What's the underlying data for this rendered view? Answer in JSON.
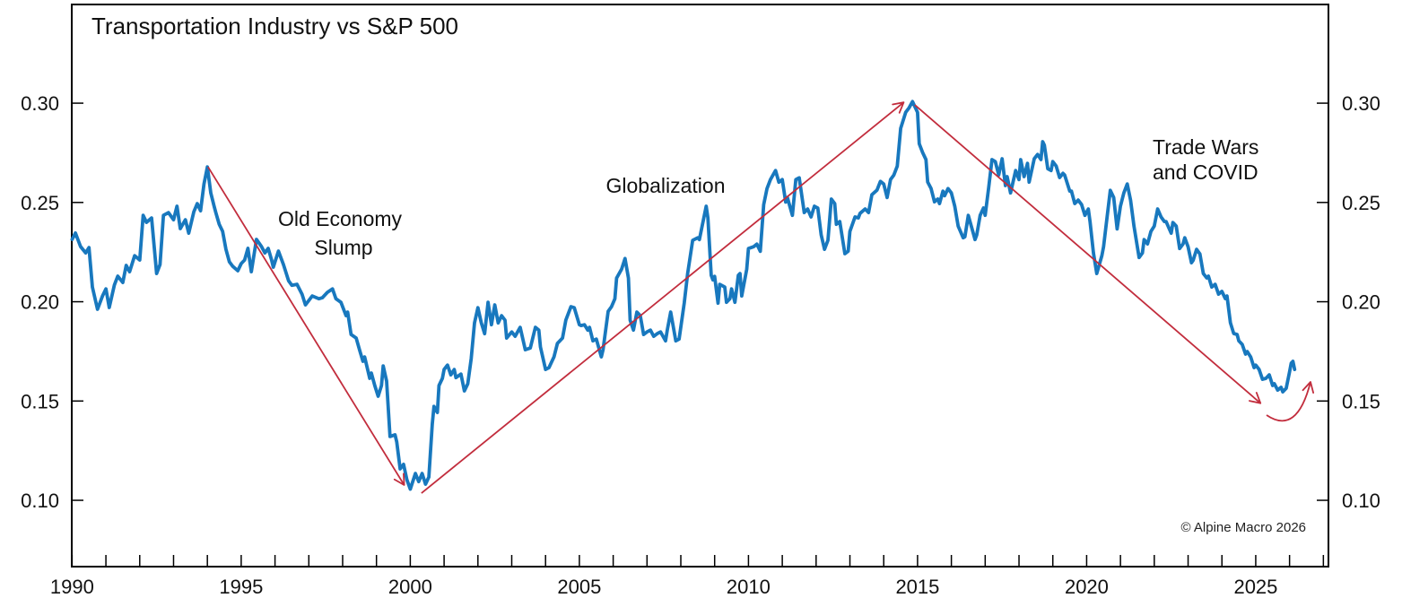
{
  "title": "Transportation Industry vs S&P 500",
  "copyright_note": "© Alpine Macro 2026",
  "colors": {
    "line": "#1878be",
    "arrow": "#c22d3d",
    "axis": "#000000",
    "text": "#111111",
    "background": "#ffffff"
  },
  "annotations": [
    {
      "id": "old-economy-slump",
      "lines": [
        "Old Economy",
        "Slump"
      ]
    },
    {
      "id": "globalization",
      "lines": [
        "Globalization"
      ]
    },
    {
      "id": "trade-wars-covid",
      "lines": [
        "Trade Wars",
        "and COVID"
      ]
    }
  ],
  "chart_data": {
    "type": "line",
    "title": "Transportation Industry vs S&P 500",
    "xlabel": "",
    "ylabel": "",
    "grid": false,
    "legend": "none",
    "xlim": [
      1989.99,
      2027.15
    ],
    "ylim": [
      0.0666,
      0.3497
    ],
    "x_minor_step": 1,
    "x_ticks": [
      {
        "value": 1990,
        "label": "1990"
      },
      {
        "value": 1995,
        "label": "1995"
      },
      {
        "value": 2000,
        "label": "2000"
      },
      {
        "value": 2005,
        "label": "2005"
      },
      {
        "value": 2010,
        "label": "2010"
      },
      {
        "value": 2015,
        "label": "2015"
      },
      {
        "value": 2020,
        "label": "2020"
      },
      {
        "value": 2025,
        "label": "2025"
      }
    ],
    "y_ticks": [
      {
        "value": 0.1,
        "label": "0.10"
      },
      {
        "value": 0.15,
        "label": "0.15"
      },
      {
        "value": 0.2,
        "label": "0.20"
      },
      {
        "value": 0.25,
        "label": "0.25"
      },
      {
        "value": 0.3,
        "label": "0.30"
      }
    ],
    "points": [
      [
        1990.0,
        0.2314
      ],
      [
        1990.1,
        0.2346
      ],
      [
        1990.25,
        0.2278
      ],
      [
        1990.4,
        0.2246
      ],
      [
        1990.5,
        0.2273
      ],
      [
        1990.6,
        0.2074
      ],
      [
        1990.75,
        0.1962
      ],
      [
        1990.9,
        0.2029
      ],
      [
        1991.0,
        0.2065
      ],
      [
        1991.1,
        0.1971
      ],
      [
        1991.25,
        0.2084
      ],
      [
        1991.35,
        0.2129
      ],
      [
        1991.5,
        0.2097
      ],
      [
        1991.6,
        0.2183
      ],
      [
        1991.7,
        0.2151
      ],
      [
        1991.85,
        0.2232
      ],
      [
        1992.0,
        0.221
      ],
      [
        1992.1,
        0.2435
      ],
      [
        1992.2,
        0.24
      ],
      [
        1992.35,
        0.2422
      ],
      [
        1992.5,
        0.2142
      ],
      [
        1992.6,
        0.2187
      ],
      [
        1992.7,
        0.2435
      ],
      [
        1992.85,
        0.2449
      ],
      [
        1993.0,
        0.2413
      ],
      [
        1993.1,
        0.2481
      ],
      [
        1993.2,
        0.2368
      ],
      [
        1993.35,
        0.2413
      ],
      [
        1993.45,
        0.2345
      ],
      [
        1993.6,
        0.2453
      ],
      [
        1993.7,
        0.2494
      ],
      [
        1993.8,
        0.2458
      ],
      [
        1993.9,
        0.2593
      ],
      [
        1994.0,
        0.2679
      ],
      [
        1994.1,
        0.2548
      ],
      [
        1994.2,
        0.2481
      ],
      [
        1994.25,
        0.2449
      ],
      [
        1994.35,
        0.239
      ],
      [
        1994.45,
        0.2354
      ],
      [
        1994.55,
        0.2264
      ],
      [
        1994.65,
        0.2201
      ],
      [
        1994.75,
        0.2178
      ],
      [
        1994.9,
        0.2156
      ],
      [
        1995.0,
        0.2192
      ],
      [
        1995.1,
        0.221
      ],
      [
        1995.2,
        0.2269
      ],
      [
        1995.3,
        0.2151
      ],
      [
        1995.45,
        0.2314
      ],
      [
        1995.6,
        0.2278
      ],
      [
        1995.7,
        0.2246
      ],
      [
        1995.8,
        0.2269
      ],
      [
        1995.9,
        0.221
      ],
      [
        1995.95,
        0.2174
      ],
      [
        1996.1,
        0.2255
      ],
      [
        1996.25,
        0.2187
      ],
      [
        1996.4,
        0.2106
      ],
      [
        1996.5,
        0.2083
      ],
      [
        1996.65,
        0.2088
      ],
      [
        1996.8,
        0.2038
      ],
      [
        1996.9,
        0.1984
      ],
      [
        1997.1,
        0.2029
      ],
      [
        1997.3,
        0.2015
      ],
      [
        1997.4,
        0.202
      ],
      [
        1997.55,
        0.2047
      ],
      [
        1997.7,
        0.2065
      ],
      [
        1997.8,
        0.2015
      ],
      [
        1997.95,
        0.1997
      ],
      [
        1998.1,
        0.193
      ],
      [
        1998.15,
        0.1948
      ],
      [
        1998.25,
        0.1835
      ],
      [
        1998.4,
        0.1817
      ],
      [
        1998.5,
        0.1758
      ],
      [
        1998.6,
        0.17
      ],
      [
        1998.65,
        0.1722
      ],
      [
        1998.8,
        0.1614
      ],
      [
        1998.85,
        0.1641
      ],
      [
        1998.95,
        0.1578
      ],
      [
        1999.05,
        0.1524
      ],
      [
        1999.15,
        0.1578
      ],
      [
        1999.2,
        0.1677
      ],
      [
        1999.3,
        0.16
      ],
      [
        1999.4,
        0.1321
      ],
      [
        1999.55,
        0.133
      ],
      [
        1999.6,
        0.1294
      ],
      [
        1999.7,
        0.1158
      ],
      [
        1999.8,
        0.1181
      ],
      [
        1999.9,
        0.1104
      ],
      [
        2000.0,
        0.1056
      ],
      [
        2000.15,
        0.1135
      ],
      [
        2000.25,
        0.1094
      ],
      [
        2000.35,
        0.1135
      ],
      [
        2000.45,
        0.1081
      ],
      [
        2000.55,
        0.1117
      ],
      [
        2000.65,
        0.1383
      ],
      [
        2000.7,
        0.1473
      ],
      [
        2000.8,
        0.1442
      ],
      [
        2000.85,
        0.1578
      ],
      [
        2000.95,
        0.1614
      ],
      [
        2001.0,
        0.1659
      ],
      [
        2001.1,
        0.1681
      ],
      [
        2001.2,
        0.1632
      ],
      [
        2001.3,
        0.1659
      ],
      [
        2001.35,
        0.1618
      ],
      [
        2001.5,
        0.1636
      ],
      [
        2001.6,
        0.1551
      ],
      [
        2001.7,
        0.1587
      ],
      [
        2001.8,
        0.1713
      ],
      [
        2001.9,
        0.1893
      ],
      [
        2002.0,
        0.197
      ],
      [
        2002.1,
        0.1893
      ],
      [
        2002.2,
        0.1839
      ],
      [
        2002.3,
        0.1997
      ],
      [
        2002.4,
        0.1884
      ],
      [
        2002.5,
        0.1984
      ],
      [
        2002.6,
        0.1893
      ],
      [
        2002.7,
        0.193
      ],
      [
        2002.8,
        0.1907
      ],
      [
        2002.85,
        0.1817
      ],
      [
        2003.0,
        0.1848
      ],
      [
        2003.1,
        0.1826
      ],
      [
        2003.25,
        0.1871
      ],
      [
        2003.4,
        0.1758
      ],
      [
        2003.55,
        0.1767
      ],
      [
        2003.7,
        0.1871
      ],
      [
        2003.8,
        0.1857
      ],
      [
        2003.85,
        0.1772
      ],
      [
        2004.0,
        0.1659
      ],
      [
        2004.1,
        0.1668
      ],
      [
        2004.25,
        0.1722
      ],
      [
        2004.35,
        0.179
      ],
      [
        2004.5,
        0.1817
      ],
      [
        2004.6,
        0.1907
      ],
      [
        2004.75,
        0.1975
      ],
      [
        2004.85,
        0.197
      ],
      [
        2005.0,
        0.1884
      ],
      [
        2005.05,
        0.188
      ],
      [
        2005.15,
        0.1884
      ],
      [
        2005.25,
        0.1857
      ],
      [
        2005.3,
        0.1871
      ],
      [
        2005.4,
        0.1803
      ],
      [
        2005.5,
        0.1812
      ],
      [
        2005.65,
        0.1722
      ],
      [
        2005.7,
        0.1758
      ],
      [
        2005.85,
        0.1952
      ],
      [
        2005.95,
        0.1975
      ],
      [
        2006.05,
        0.2015
      ],
      [
        2006.1,
        0.2119
      ],
      [
        2006.25,
        0.2164
      ],
      [
        2006.35,
        0.2218
      ],
      [
        2006.45,
        0.2119
      ],
      [
        2006.5,
        0.1907
      ],
      [
        2006.6,
        0.1857
      ],
      [
        2006.7,
        0.1948
      ],
      [
        2006.8,
        0.193
      ],
      [
        2006.9,
        0.1835
      ],
      [
        2007.0,
        0.1848
      ],
      [
        2007.1,
        0.1857
      ],
      [
        2007.2,
        0.1826
      ],
      [
        2007.3,
        0.1839
      ],
      [
        2007.4,
        0.1848
      ],
      [
        2007.55,
        0.1803
      ],
      [
        2007.6,
        0.1857
      ],
      [
        2007.7,
        0.1948
      ],
      [
        2007.85,
        0.1803
      ],
      [
        2007.95,
        0.1812
      ],
      [
        2008.1,
        0.1993
      ],
      [
        2008.2,
        0.2142
      ],
      [
        2008.35,
        0.2309
      ],
      [
        2008.5,
        0.2322
      ],
      [
        2008.55,
        0.2313
      ],
      [
        2008.75,
        0.2481
      ],
      [
        2008.8,
        0.2422
      ],
      [
        2008.9,
        0.2133
      ],
      [
        2008.95,
        0.211
      ],
      [
        2009.0,
        0.2128
      ],
      [
        2009.1,
        0.1993
      ],
      [
        2009.15,
        0.2088
      ],
      [
        2009.3,
        0.2074
      ],
      [
        2009.35,
        0.1997
      ],
      [
        2009.45,
        0.2015
      ],
      [
        2009.5,
        0.2065
      ],
      [
        2009.6,
        0.1997
      ],
      [
        2009.7,
        0.2133
      ],
      [
        2009.75,
        0.2142
      ],
      [
        2009.8,
        0.2029
      ],
      [
        2009.95,
        0.2164
      ],
      [
        2010.0,
        0.2268
      ],
      [
        2010.15,
        0.2277
      ],
      [
        2010.25,
        0.229
      ],
      [
        2010.35,
        0.2254
      ],
      [
        2010.45,
        0.2489
      ],
      [
        2010.55,
        0.257
      ],
      [
        2010.65,
        0.2615
      ],
      [
        2010.8,
        0.2661
      ],
      [
        2010.9,
        0.2602
      ],
      [
        2011.0,
        0.2615
      ],
      [
        2011.1,
        0.2502
      ],
      [
        2011.15,
        0.2525
      ],
      [
        2011.3,
        0.2435
      ],
      [
        2011.4,
        0.2615
      ],
      [
        2011.5,
        0.2624
      ],
      [
        2011.65,
        0.2449
      ],
      [
        2011.75,
        0.2467
      ],
      [
        2011.85,
        0.2427
      ],
      [
        2011.95,
        0.2481
      ],
      [
        2012.05,
        0.2472
      ],
      [
        2012.15,
        0.2336
      ],
      [
        2012.25,
        0.2264
      ],
      [
        2012.35,
        0.2309
      ],
      [
        2012.45,
        0.2517
      ],
      [
        2012.55,
        0.2494
      ],
      [
        2012.6,
        0.239
      ],
      [
        2012.7,
        0.2404
      ],
      [
        2012.85,
        0.2242
      ],
      [
        2012.95,
        0.2255
      ],
      [
        2013.0,
        0.2354
      ],
      [
        2013.15,
        0.2427
      ],
      [
        2013.25,
        0.2422
      ],
      [
        2013.3,
        0.2445
      ],
      [
        2013.45,
        0.2467
      ],
      [
        2013.55,
        0.2449
      ],
      [
        2013.65,
        0.2539
      ],
      [
        2013.8,
        0.2562
      ],
      [
        2013.9,
        0.2606
      ],
      [
        2014.0,
        0.2593
      ],
      [
        2014.1,
        0.2525
      ],
      [
        2014.2,
        0.2615
      ],
      [
        2014.3,
        0.2638
      ],
      [
        2014.4,
        0.2683
      ],
      [
        2014.5,
        0.2873
      ],
      [
        2014.65,
        0.2954
      ],
      [
        2014.75,
        0.2977
      ],
      [
        2014.85,
        0.3008
      ],
      [
        2015.0,
        0.2954
      ],
      [
        2015.05,
        0.2796
      ],
      [
        2015.15,
        0.2751
      ],
      [
        2015.25,
        0.2716
      ],
      [
        2015.3,
        0.2603
      ],
      [
        2015.4,
        0.257
      ],
      [
        2015.5,
        0.2503
      ],
      [
        2015.6,
        0.2517
      ],
      [
        2015.65,
        0.2494
      ],
      [
        2015.75,
        0.2557
      ],
      [
        2015.8,
        0.2534
      ],
      [
        2015.9,
        0.257
      ],
      [
        2016.0,
        0.2548
      ],
      [
        2016.1,
        0.2481
      ],
      [
        2016.2,
        0.2381
      ],
      [
        2016.35,
        0.2322
      ],
      [
        2016.4,
        0.2327
      ],
      [
        2016.5,
        0.2435
      ],
      [
        2016.7,
        0.2313
      ],
      [
        2016.75,
        0.2336
      ],
      [
        2016.85,
        0.2435
      ],
      [
        2016.95,
        0.2472
      ],
      [
        2017.0,
        0.2435
      ],
      [
        2017.1,
        0.257
      ],
      [
        2017.2,
        0.2716
      ],
      [
        2017.3,
        0.2706
      ],
      [
        2017.4,
        0.2638
      ],
      [
        2017.5,
        0.272
      ],
      [
        2017.6,
        0.2585
      ],
      [
        2017.65,
        0.263
      ],
      [
        2017.75,
        0.2548
      ],
      [
        2017.9,
        0.2661
      ],
      [
        2018.0,
        0.2615
      ],
      [
        2018.05,
        0.2716
      ],
      [
        2018.15,
        0.263
      ],
      [
        2018.25,
        0.2697
      ],
      [
        2018.3,
        0.2602
      ],
      [
        2018.45,
        0.272
      ],
      [
        2018.55,
        0.2742
      ],
      [
        2018.65,
        0.2716
      ],
      [
        2018.7,
        0.2806
      ],
      [
        2018.75,
        0.2788
      ],
      [
        2018.85,
        0.267
      ],
      [
        2018.95,
        0.2661
      ],
      [
        2019.0,
        0.2706
      ],
      [
        2019.1,
        0.2683
      ],
      [
        2019.2,
        0.2625
      ],
      [
        2019.3,
        0.2647
      ],
      [
        2019.35,
        0.2638
      ],
      [
        2019.5,
        0.2557
      ],
      [
        2019.55,
        0.2557
      ],
      [
        2019.65,
        0.2494
      ],
      [
        2019.75,
        0.2512
      ],
      [
        2019.85,
        0.2489
      ],
      [
        2019.95,
        0.2435
      ],
      [
        2020.05,
        0.2467
      ],
      [
        2020.1,
        0.2404
      ],
      [
        2020.2,
        0.2246
      ],
      [
        2020.3,
        0.2142
      ],
      [
        2020.45,
        0.2232
      ],
      [
        2020.5,
        0.2277
      ],
      [
        2020.6,
        0.2422
      ],
      [
        2020.7,
        0.2561
      ],
      [
        2020.8,
        0.2525
      ],
      [
        2020.9,
        0.2367
      ],
      [
        2021.0,
        0.2481
      ],
      [
        2021.1,
        0.2548
      ],
      [
        2021.2,
        0.2593
      ],
      [
        2021.3,
        0.2512
      ],
      [
        2021.4,
        0.2381
      ],
      [
        2021.55,
        0.2223
      ],
      [
        2021.65,
        0.2246
      ],
      [
        2021.7,
        0.2313
      ],
      [
        2021.8,
        0.2291
      ],
      [
        2021.9,
        0.2354
      ],
      [
        2022.0,
        0.2381
      ],
      [
        2022.1,
        0.2467
      ],
      [
        2022.2,
        0.2427
      ],
      [
        2022.3,
        0.2404
      ],
      [
        2022.35,
        0.2404
      ],
      [
        2022.5,
        0.2345
      ],
      [
        2022.55,
        0.2399
      ],
      [
        2022.65,
        0.2381
      ],
      [
        2022.75,
        0.2268
      ],
      [
        2022.85,
        0.2291
      ],
      [
        2022.9,
        0.2322
      ],
      [
        2023.0,
        0.2277
      ],
      [
        2023.1,
        0.2196
      ],
      [
        2023.15,
        0.2209
      ],
      [
        2023.25,
        0.2264
      ],
      [
        2023.35,
        0.2241
      ],
      [
        2023.45,
        0.2142
      ],
      [
        2023.55,
        0.212
      ],
      [
        2023.6,
        0.2129
      ],
      [
        2023.7,
        0.2074
      ],
      [
        2023.8,
        0.2088
      ],
      [
        2023.9,
        0.2038
      ],
      [
        2024.0,
        0.2052
      ],
      [
        2024.1,
        0.2016
      ],
      [
        2024.15,
        0.2029
      ],
      [
        2024.25,
        0.1894
      ],
      [
        2024.35,
        0.184
      ],
      [
        2024.45,
        0.1835
      ],
      [
        2024.5,
        0.1803
      ],
      [
        2024.6,
        0.1785
      ],
      [
        2024.7,
        0.1736
      ],
      [
        2024.75,
        0.1749
      ],
      [
        2024.85,
        0.1722
      ],
      [
        2024.95,
        0.1668
      ],
      [
        2025.0,
        0.1681
      ],
      [
        2025.1,
        0.1659
      ],
      [
        2025.2,
        0.1609
      ],
      [
        2025.3,
        0.1614
      ],
      [
        2025.4,
        0.1632
      ],
      [
        2025.5,
        0.1578
      ],
      [
        2025.55,
        0.1587
      ],
      [
        2025.65,
        0.1555
      ],
      [
        2025.75,
        0.1569
      ],
      [
        2025.8,
        0.1546
      ],
      [
        2025.9,
        0.1564
      ],
      [
        2026.0,
        0.1646
      ],
      [
        2026.05,
        0.1691
      ],
      [
        2026.1,
        0.17
      ],
      [
        2026.15,
        0.1659
      ]
    ],
    "arrows": [
      {
        "kind": "straight",
        "from": [
          1994.02,
          0.2679
        ],
        "to": [
          1999.82,
          0.1077
        ]
      },
      {
        "kind": "straight",
        "from": [
          2000.33,
          0.1036
        ],
        "to": [
          2014.59,
          0.3004
        ]
      },
      {
        "kind": "straight",
        "from": [
          2014.92,
          0.2991
        ],
        "to": [
          2025.14,
          0.1489
        ]
      },
      {
        "kind": "curved",
        "from": [
          2025.32,
          0.1429
        ],
        "control": [
          2026.22,
          0.1325
        ],
        "to": [
          2026.62,
          0.1596
        ]
      }
    ]
  }
}
